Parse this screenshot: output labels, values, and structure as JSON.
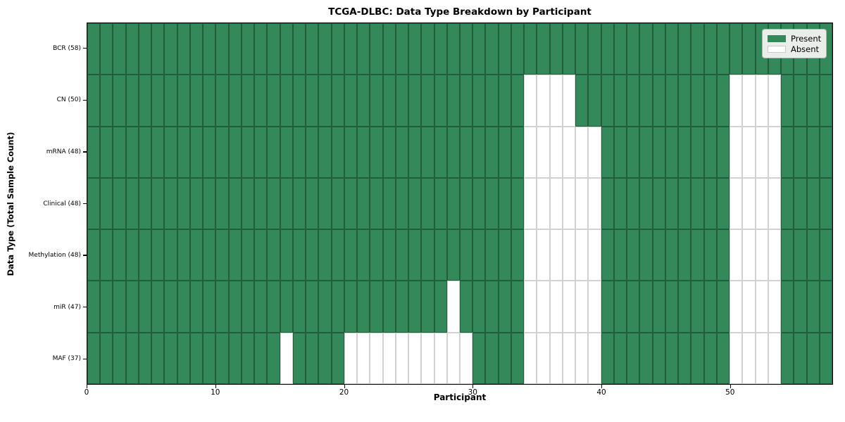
{
  "chart_data": {
    "type": "heatmap",
    "title": "TCGA-DLBC: Data Type Breakdown by Participant",
    "xlabel": "Participant",
    "ylabel": "Data Type (Total Sample Count)",
    "n_participants": 58,
    "x_ticks": [
      0,
      10,
      20,
      30,
      40,
      50
    ],
    "grid": true,
    "legend_position": "upper right",
    "colors": {
      "present": "#33895A",
      "absent": "#FFFFFF"
    },
    "legend": [
      {
        "key": "present",
        "label": "Present"
      },
      {
        "key": "absent",
        "label": "Absent"
      }
    ],
    "rows": [
      {
        "label": "BCR (58)",
        "data_type": "BCR",
        "total_samples": 58,
        "absent_participants": []
      },
      {
        "label": "CN (50)",
        "data_type": "CN",
        "total_samples": 50,
        "absent_participants": [
          34,
          35,
          36,
          37,
          50,
          51,
          52,
          53
        ]
      },
      {
        "label": "mRNA (48)",
        "data_type": "mRNA",
        "total_samples": 48,
        "absent_participants": [
          34,
          35,
          36,
          37,
          38,
          39,
          50,
          51,
          52,
          53
        ]
      },
      {
        "label": "Clinical (48)",
        "data_type": "Clinical",
        "total_samples": 48,
        "absent_participants": [
          34,
          35,
          36,
          37,
          38,
          39,
          50,
          51,
          52,
          53
        ]
      },
      {
        "label": "Methylation (48)",
        "data_type": "Methylation",
        "total_samples": 48,
        "absent_participants": [
          34,
          35,
          36,
          37,
          38,
          39,
          50,
          51,
          52,
          53
        ]
      },
      {
        "label": "miR (47)",
        "data_type": "miR",
        "total_samples": 47,
        "absent_participants": [
          28,
          34,
          35,
          36,
          37,
          38,
          39,
          50,
          51,
          52,
          53
        ]
      },
      {
        "label": "MAF (37)",
        "data_type": "MAF",
        "total_samples": 37,
        "absent_participants": [
          15,
          20,
          21,
          22,
          23,
          24,
          25,
          26,
          27,
          28,
          29,
          34,
          35,
          36,
          37,
          38,
          39,
          50,
          51,
          52,
          53
        ]
      }
    ]
  }
}
